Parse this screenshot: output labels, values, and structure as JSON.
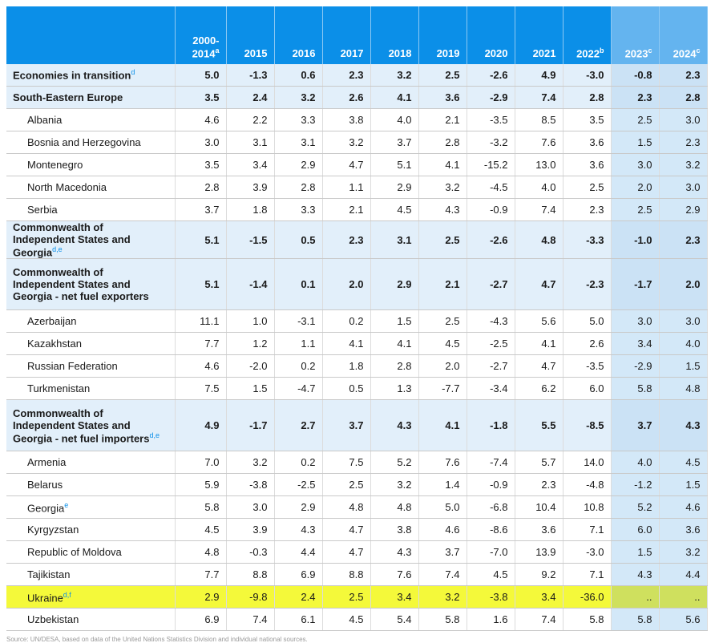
{
  "table": {
    "headers": [
      "",
      "2000-2014",
      "2015",
      "2016",
      "2017",
      "2018",
      "2019",
      "2020",
      "2021",
      "2022",
      "2023",
      "2024"
    ],
    "header_notes": [
      "",
      "a",
      "",
      "",
      "",
      "",
      "",
      "",
      "",
      "b",
      "c",
      "c"
    ],
    "rows": [
      {
        "label": "Economies in transition",
        "note": "d",
        "values": [
          "5.0",
          "-1.3",
          "0.6",
          "2.3",
          "3.2",
          "2.5",
          "-2.6",
          "4.9",
          "-3.0",
          "-0.8",
          "2.3"
        ]
      },
      {
        "label": "South-Eastern Europe",
        "note": "",
        "values": [
          "3.5",
          "2.4",
          "3.2",
          "2.6",
          "4.1",
          "3.6",
          "-2.9",
          "7.4",
          "2.8",
          "2.3",
          "2.8"
        ]
      },
      {
        "label": "Albania",
        "note": "",
        "values": [
          "4.6",
          "2.2",
          "3.3",
          "3.8",
          "4.0",
          "2.1",
          "-3.5",
          "8.5",
          "3.5",
          "2.5",
          "3.0"
        ]
      },
      {
        "label": "Bosnia and Herzegovina",
        "note": "",
        "values": [
          "3.0",
          "3.1",
          "3.1",
          "3.2",
          "3.7",
          "2.8",
          "-3.2",
          "7.6",
          "3.6",
          "1.5",
          "2.3"
        ]
      },
      {
        "label": "Montenegro",
        "note": "",
        "values": [
          "3.5",
          "3.4",
          "2.9",
          "4.7",
          "5.1",
          "4.1",
          "-15.2",
          "13.0",
          "3.6",
          "3.0",
          "3.2"
        ]
      },
      {
        "label": "North Macedonia",
        "note": "",
        "values": [
          "2.8",
          "3.9",
          "2.8",
          "1.1",
          "2.9",
          "3.2",
          "-4.5",
          "4.0",
          "2.5",
          "2.0",
          "3.0"
        ]
      },
      {
        "label": "Serbia",
        "note": "",
        "values": [
          "3.7",
          "1.8",
          "3.3",
          "2.1",
          "4.5",
          "4.3",
          "-0.9",
          "7.4",
          "2.3",
          "2.5",
          "2.9"
        ]
      },
      {
        "label": "Commonwealth of Independent States and Georgia",
        "note": "d,e",
        "values": [
          "5.1",
          "-1.5",
          "0.5",
          "2.3",
          "3.1",
          "2.5",
          "-2.6",
          "4.8",
          "-3.3",
          "-1.0",
          "2.3"
        ]
      },
      {
        "label": "Commonwealth of Independent States and Georgia - net fuel exporters",
        "note": "",
        "values": [
          "5.1",
          "-1.4",
          "0.1",
          "2.0",
          "2.9",
          "2.1",
          "-2.7",
          "4.7",
          "-2.3",
          "-1.7",
          "2.0"
        ]
      },
      {
        "label": "Azerbaijan",
        "note": "",
        "values": [
          "11.1",
          "1.0",
          "-3.1",
          "0.2",
          "1.5",
          "2.5",
          "-4.3",
          "5.6",
          "5.0",
          "3.0",
          "3.0"
        ]
      },
      {
        "label": "Kazakhstan",
        "note": "",
        "values": [
          "7.7",
          "1.2",
          "1.1",
          "4.1",
          "4.1",
          "4.5",
          "-2.5",
          "4.1",
          "2.6",
          "3.4",
          "4.0"
        ]
      },
      {
        "label": "Russian Federation",
        "note": "",
        "values": [
          "4.6",
          "-2.0",
          "0.2",
          "1.8",
          "2.8",
          "2.0",
          "-2.7",
          "4.7",
          "-3.5",
          "-2.9",
          "1.5"
        ]
      },
      {
        "label": "Turkmenistan",
        "note": "",
        "values": [
          "7.5",
          "1.5",
          "-4.7",
          "0.5",
          "1.3",
          "-7.7",
          "-3.4",
          "6.2",
          "6.0",
          "5.8",
          "4.8"
        ]
      },
      {
        "label": "Commonwealth of Independent States and Georgia - net fuel importers",
        "note": "d,e",
        "values": [
          "4.9",
          "-1.7",
          "2.7",
          "3.7",
          "4.3",
          "4.1",
          "-1.8",
          "5.5",
          "-8.5",
          "3.7",
          "4.3"
        ]
      },
      {
        "label": "Armenia",
        "note": "",
        "values": [
          "7.0",
          "3.2",
          "0.2",
          "7.5",
          "5.2",
          "7.6",
          "-7.4",
          "5.7",
          "14.0",
          "4.0",
          "4.5"
        ]
      },
      {
        "label": "Belarus",
        "note": "",
        "values": [
          "5.9",
          "-3.8",
          "-2.5",
          "2.5",
          "3.2",
          "1.4",
          "-0.9",
          "2.3",
          "-4.8",
          "-1.2",
          "1.5"
        ]
      },
      {
        "label": "Georgia",
        "note": "e",
        "values": [
          "5.8",
          "3.0",
          "2.9",
          "4.8",
          "4.8",
          "5.0",
          "-6.8",
          "10.4",
          "10.8",
          "5.2",
          "4.6"
        ]
      },
      {
        "label": "Kyrgyzstan",
        "note": "",
        "values": [
          "4.5",
          "3.9",
          "4.3",
          "4.7",
          "3.8",
          "4.6",
          "-8.6",
          "3.6",
          "7.1",
          "6.0",
          "3.6"
        ]
      },
      {
        "label": "Republic of Moldova",
        "note": "",
        "values": [
          "4.8",
          "-0.3",
          "4.4",
          "4.7",
          "4.3",
          "3.7",
          "-7.0",
          "13.9",
          "-3.0",
          "1.5",
          "3.2"
        ]
      },
      {
        "label": "Tajikistan",
        "note": "",
        "values": [
          "7.7",
          "8.8",
          "6.9",
          "8.8",
          "7.6",
          "7.4",
          "4.5",
          "9.2",
          "7.1",
          "4.3",
          "4.4"
        ]
      },
      {
        "label": "Ukraine",
        "note": "d,f",
        "values": [
          "2.9",
          "-9.8",
          "2.4",
          "2.5",
          "3.4",
          "3.2",
          "-3.8",
          "3.4",
          "-36.0",
          "..",
          ".."
        ]
      },
      {
        "label": "Uzbekistan",
        "note": "",
        "values": [
          "6.9",
          "7.4",
          "6.1",
          "4.5",
          "5.4",
          "5.8",
          "1.6",
          "7.4",
          "5.8",
          "5.8",
          "5.6"
        ]
      }
    ]
  },
  "colors": {
    "header_bg": "#0b8fe8",
    "aggregate_bg": "#e2effa",
    "highlight": "#f4f93a",
    "footnote": "#0b8fe8"
  },
  "footer": {
    "source": "Source: UN/DESA, based on data of the United Nations Statistics Division and individual national sources."
  }
}
